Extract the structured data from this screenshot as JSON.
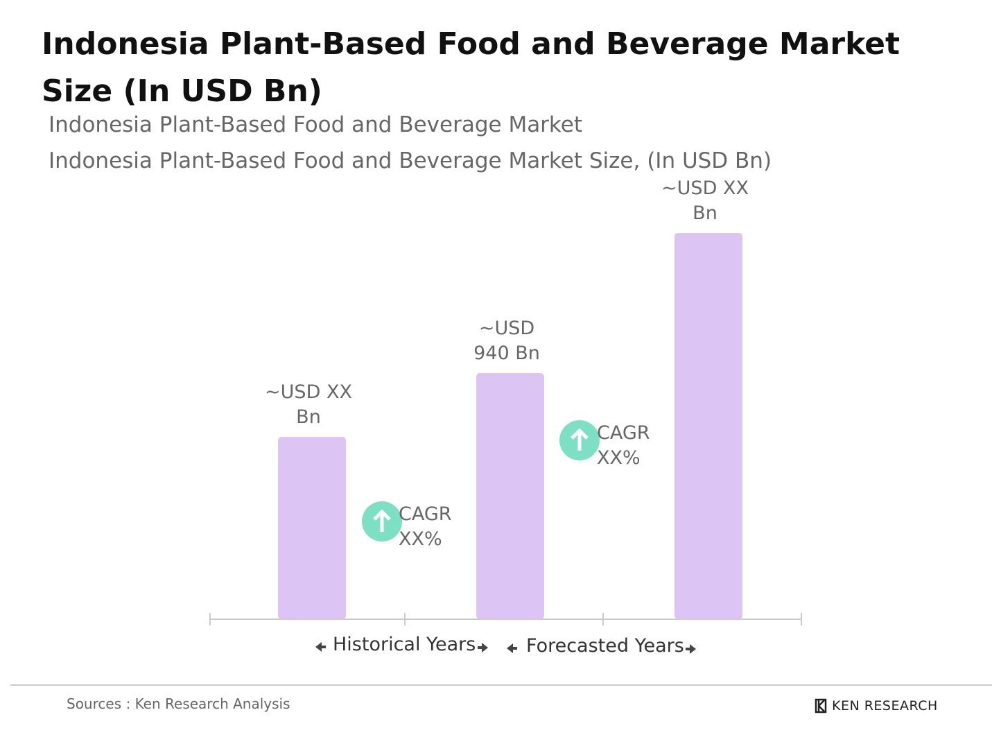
{
  "chart_data": {
    "type": "bar",
    "title": "Indonesia Plant-Based Food and Beverage Market Size (In USD Bn)",
    "subtitle": "Indonesia Plant-Based Food and Beverage Market",
    "subtitle2": "Indonesia Plant-Based Food and Beverage Market Size, (In USD Bn)",
    "values": [
      696,
      940,
      1475
    ],
    "value_labels": [
      "~USD XX Bn",
      "~USD 940 Bn",
      "~USD XX Bn"
    ],
    "color": "#dcc4f5",
    "cagr_labels": [
      "CAGR XX%",
      "CAGR XX%"
    ],
    "period_labels": [
      "Historical Years",
      "Forecasted Years"
    ]
  },
  "footer": {
    "source": "Sources : Ken Research Analysis",
    "logo": "KEN RESEARCH"
  }
}
